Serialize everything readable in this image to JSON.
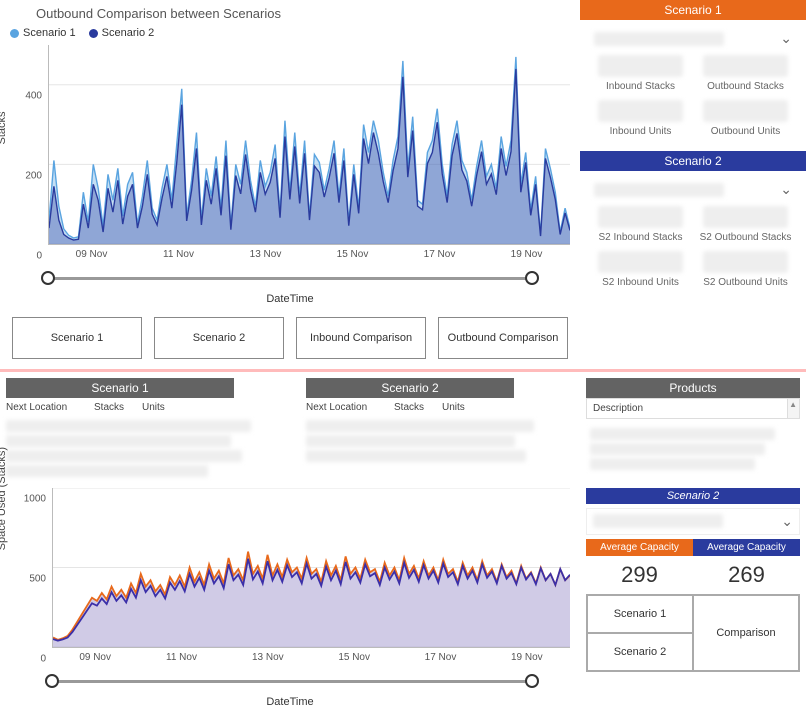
{
  "top_chart": {
    "title": "Outbound Comparison between Scenarios",
    "type": "area-line",
    "y_axis_label": "Stacks",
    "x_axis_label": "DateTime",
    "ylim": [
      0,
      500
    ],
    "yticks": [
      0,
      200,
      400
    ],
    "x_labels": [
      "09 Nov",
      "11 Nov",
      "13 Nov",
      "15 Nov",
      "17 Nov",
      "19 Nov"
    ],
    "legend": [
      {
        "label": "Scenario 1",
        "color": "#5aa4e0"
      },
      {
        "label": "Scenario 2",
        "color": "#2a3b9e"
      }
    ],
    "background_color": "#ffffff",
    "grid_color": "#dddddd",
    "s1_color": "#5aa4e0",
    "s1_fill": "rgba(90,164,224,0.35)",
    "s2_color": "#2a3b9e",
    "s2_fill": "rgba(42,59,158,0.35)",
    "line_width": 1.4,
    "series1": [
      60,
      210,
      95,
      38,
      22,
      15,
      18,
      130,
      55,
      200,
      140,
      45,
      175,
      110,
      190,
      70,
      150,
      180,
      50,
      120,
      210,
      90,
      60,
      140,
      200,
      110,
      250,
      390,
      70,
      160,
      280,
      60,
      190,
      120,
      220,
      90,
      260,
      45,
      200,
      150,
      260,
      160,
      95,
      210,
      145,
      180,
      250,
      80,
      310,
      130,
      280,
      120,
      260,
      70,
      225,
      205,
      135,
      190,
      260,
      120,
      240,
      55,
      200,
      90,
      300,
      230,
      310,
      260,
      180,
      120,
      210,
      270,
      460,
      190,
      320,
      110,
      100,
      230,
      260,
      340,
      200,
      120,
      250,
      310,
      210,
      180,
      110,
      195,
      260,
      170,
      200,
      140,
      270,
      195,
      260,
      470,
      150,
      230,
      85,
      170,
      25,
      240,
      190,
      130,
      30,
      90,
      40
    ],
    "series2": [
      40,
      145,
      60,
      24,
      15,
      10,
      12,
      100,
      40,
      150,
      110,
      30,
      140,
      80,
      160,
      50,
      120,
      150,
      40,
      95,
      175,
      75,
      48,
      115,
      170,
      90,
      205,
      350,
      58,
      135,
      240,
      48,
      160,
      100,
      190,
      72,
      222,
      36,
      172,
      126,
      225,
      138,
      80,
      180,
      125,
      155,
      215,
      66,
      270,
      112,
      245,
      102,
      228,
      60,
      196,
      180,
      118,
      166,
      228,
      104,
      210,
      46,
      175,
      77,
      265,
      202,
      280,
      228,
      157,
      104,
      184,
      240,
      420,
      168,
      285,
      95,
      86,
      202,
      230,
      306,
      176,
      104,
      222,
      278,
      186,
      158,
      95,
      172,
      232,
      150,
      176,
      124,
      240,
      172,
      232,
      440,
      130,
      205,
      72,
      150,
      20,
      215,
      168,
      112,
      24,
      78,
      34
    ]
  },
  "buttons": {
    "b1": "Scenario 1",
    "b2": "Scenario 2",
    "b3": "Inbound Comparison",
    "b4": "Outbound Comparison"
  },
  "card1": {
    "header": "Scenario 1",
    "header_color": "#e8691b",
    "metrics": {
      "m1": "Inbound Stacks",
      "m2": "Outbound Stacks",
      "m3": "Inbound Units",
      "m4": "Outbound Units"
    }
  },
  "card2": {
    "header": "Scenario 2",
    "header_color": "#2a3b9e",
    "metrics": {
      "m1": "S2 Inbound Stacks",
      "m2": "S2 Outbound Stacks",
      "m3": "S2 Inbound Units",
      "m4": "S2 Outbound Units"
    }
  },
  "mid": {
    "s1_header": "Scenario 1",
    "s2_header": "Scenario 2",
    "prod_header": "Products",
    "col1": "Next Location",
    "col2": "Stacks",
    "col3": "Units",
    "desc_label": "Description"
  },
  "bottom_chart": {
    "type": "area-line",
    "y_axis_label": "Space Used (Stacks)",
    "x_axis_label": "DateTime",
    "ylim": [
      0,
      1000
    ],
    "yticks": [
      0,
      500,
      1000
    ],
    "x_labels": [
      "09 Nov",
      "11 Nov",
      "13 Nov",
      "15 Nov",
      "17 Nov",
      "19 Nov"
    ],
    "s1_color": "#e8691b",
    "s2_color": "#3b2fa8",
    "fill_color": "rgba(150,140,200,0.45)",
    "line_width": 1.8,
    "series1": [
      60,
      45,
      55,
      70,
      110,
      160,
      210,
      260,
      310,
      290,
      340,
      300,
      380,
      320,
      360,
      310,
      400,
      340,
      460,
      380,
      420,
      350,
      390,
      330,
      440,
      390,
      450,
      380,
      500,
      410,
      470,
      390,
      520,
      430,
      480,
      400,
      560,
      450,
      490,
      420,
      600,
      460,
      510,
      430,
      580,
      450,
      520,
      440,
      550,
      470,
      500,
      430,
      560,
      460,
      490,
      410,
      540,
      450,
      510,
      420,
      570,
      460,
      500,
      430,
      550,
      470,
      490,
      410,
      530,
      450,
      500,
      420,
      560,
      460,
      510,
      430,
      540,
      450,
      500,
      420,
      550,
      460,
      490,
      410,
      530,
      450,
      500,
      420,
      540,
      450,
      490,
      410,
      520,
      440,
      480,
      400,
      510,
      430,
      470,
      400,
      500,
      420,
      460,
      390,
      490,
      420,
      450
    ],
    "series2": [
      50,
      40,
      48,
      60,
      95,
      140,
      185,
      230,
      275,
      260,
      305,
      270,
      345,
      290,
      325,
      280,
      365,
      310,
      420,
      345,
      385,
      320,
      360,
      305,
      405,
      360,
      415,
      350,
      460,
      380,
      435,
      360,
      480,
      400,
      445,
      370,
      520,
      420,
      455,
      390,
      555,
      425,
      475,
      400,
      540,
      420,
      485,
      410,
      515,
      440,
      470,
      400,
      525,
      430,
      460,
      385,
      505,
      420,
      480,
      395,
      535,
      430,
      470,
      405,
      520,
      445,
      465,
      390,
      500,
      425,
      475,
      400,
      530,
      435,
      485,
      410,
      515,
      430,
      480,
      405,
      525,
      440,
      470,
      395,
      510,
      430,
      480,
      405,
      520,
      435,
      475,
      400,
      510,
      430,
      465,
      395,
      500,
      425,
      465,
      395,
      495,
      420,
      460,
      390,
      490,
      420,
      455
    ]
  },
  "sub_s2_header": "Scenario 2",
  "capacity": {
    "h1": "Average Capacity",
    "h2": "Average Capacity",
    "h1_color": "#e8691b",
    "h2_color": "#2a3b9e",
    "v1": "299",
    "v2": "269"
  },
  "grid_btns": {
    "b1": "Scenario 1",
    "b2": "Scenario 2",
    "b3": "Comparison"
  }
}
